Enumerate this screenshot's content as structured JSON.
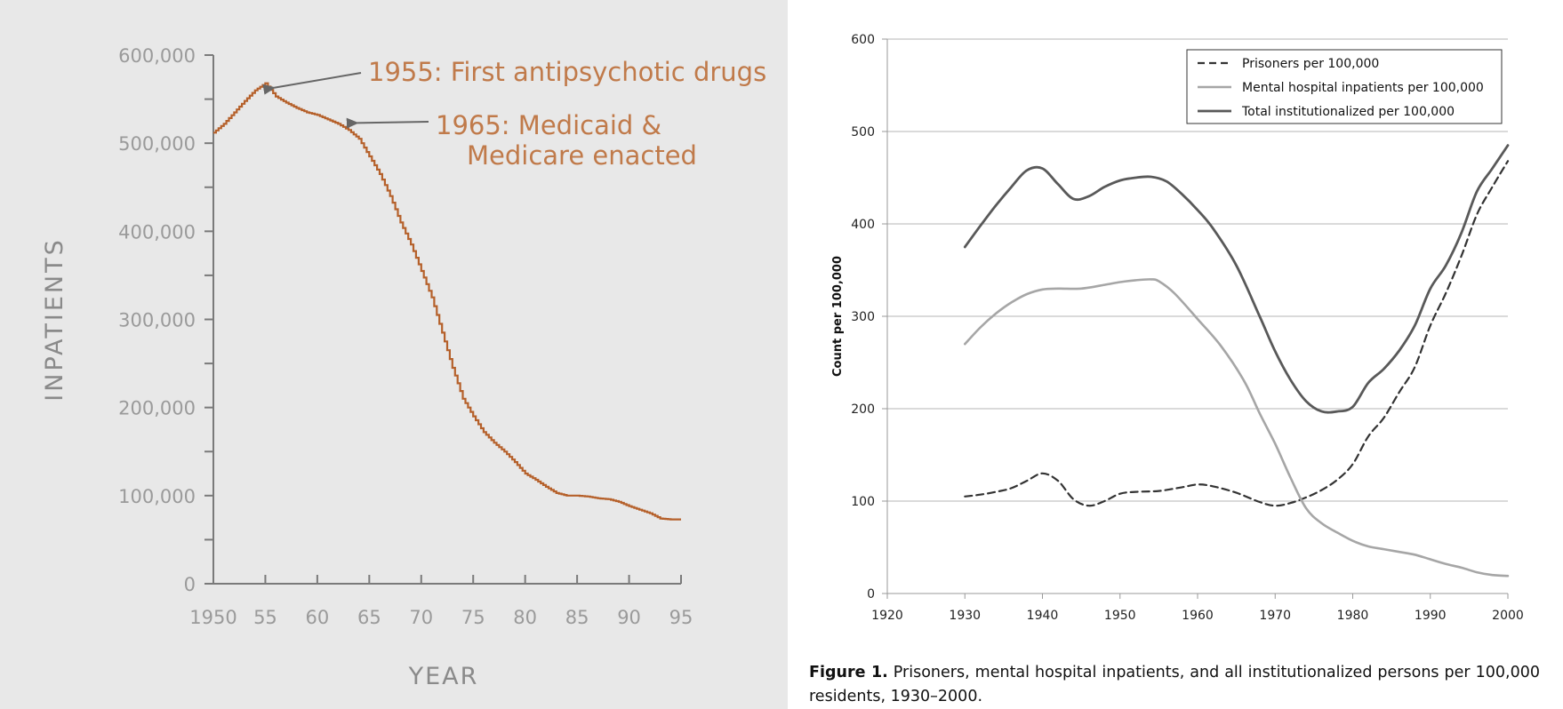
{
  "colors": {
    "left_background": "#e8e8e8",
    "left_axis": "#7a7a7a",
    "left_tick_label": "#9a9a9a",
    "left_line": "#b5602a",
    "left_annotation": "#c07a4a",
    "left_arrow": "#666666",
    "right_axis": "#999999",
    "right_grid": "#b5b5b5",
    "prisoners_line": "#333333",
    "mental_line": "#a6a6a6",
    "total_line": "#595959"
  },
  "chart_data": [
    {
      "type": "line",
      "ylabel": "INPATIENTS",
      "xlabel": "YEAR",
      "xlim": [
        1950,
        1995
      ],
      "ylim": [
        0,
        600000
      ],
      "x_tick_labels": [
        "1950",
        "55",
        "60",
        "65",
        "70",
        "75",
        "80",
        "85",
        "90",
        "95"
      ],
      "x_ticks": [
        1950,
        1955,
        1960,
        1965,
        1970,
        1975,
        1980,
        1985,
        1990,
        1995
      ],
      "y_tick_labels": [
        "0",
        "100,000",
        "200,000",
        "300,000",
        "400,000",
        "500,000",
        "600,000"
      ],
      "y_ticks": [
        0,
        100000,
        200000,
        300000,
        400000,
        500000,
        600000
      ],
      "grid": false,
      "x": [
        1950,
        1951,
        1952,
        1953,
        1954,
        1955,
        1956,
        1957,
        1958,
        1959,
        1960,
        1961,
        1962,
        1963,
        1964,
        1965,
        1966,
        1967,
        1968,
        1969,
        1970,
        1971,
        1972,
        1973,
        1974,
        1975,
        1976,
        1977,
        1978,
        1979,
        1980,
        1981,
        1982,
        1983,
        1984,
        1985,
        1986,
        1987,
        1988,
        1989,
        1990,
        1991,
        1992,
        1993,
        1994,
        1995
      ],
      "y": [
        512000,
        522000,
        535000,
        548000,
        560000,
        568000,
        553000,
        546000,
        540000,
        535000,
        532000,
        527000,
        522000,
        515000,
        505000,
        485000,
        465000,
        440000,
        410000,
        385000,
        355000,
        325000,
        285000,
        245000,
        210000,
        190000,
        172000,
        160000,
        150000,
        138000,
        125000,
        118000,
        110000,
        103000,
        100000,
        100000,
        99000,
        97000,
        96000,
        93000,
        88000,
        84000,
        80000,
        74000,
        73000,
        73000
      ],
      "annotations": [
        {
          "text": "1955: First antipsychotic drugs",
          "x": 1955.5,
          "y": 566000
        },
        {
          "lines": [
            "1965: Medicaid &",
            "Medicare enacted"
          ],
          "x": 1963.5,
          "y": 525000
        }
      ]
    },
    {
      "type": "line",
      "ylabel": "Count per 100,000",
      "xlim": [
        1920,
        2000
      ],
      "ylim": [
        0,
        600
      ],
      "x_ticks": [
        1920,
        1930,
        1940,
        1950,
        1960,
        1970,
        1980,
        1990,
        2000
      ],
      "x_tick_labels": [
        "1920",
        "1930",
        "1940",
        "1950",
        "1960",
        "1970",
        "1980",
        "1990",
        "2000"
      ],
      "y_ticks": [
        0,
        100,
        200,
        300,
        400,
        500,
        600
      ],
      "y_tick_labels": [
        "0",
        "100",
        "200",
        "300",
        "400",
        "500",
        "600"
      ],
      "grid": true,
      "legend_position": "top-right",
      "series": [
        {
          "name": "Prisoners per 100,000",
          "style": "dashed",
          "x": [
            1930,
            1932,
            1934,
            1936,
            1938,
            1940,
            1942,
            1944,
            1946,
            1948,
            1950,
            1952,
            1955,
            1958,
            1960,
            1962,
            1965,
            1968,
            1970,
            1972,
            1974,
            1976,
            1978,
            1980,
            1982,
            1984,
            1986,
            1988,
            1990,
            1992,
            1994,
            1996,
            1998,
            2000
          ],
          "values": [
            105,
            107,
            110,
            114,
            122,
            130,
            122,
            102,
            95,
            100,
            108,
            110,
            111,
            115,
            118,
            116,
            109,
            99,
            95,
            98,
            104,
            112,
            123,
            140,
            170,
            190,
            218,
            245,
            290,
            325,
            365,
            410,
            440,
            468
          ]
        },
        {
          "name": "Mental hospital inpatients per 100,000",
          "style": "solid",
          "x": [
            1930,
            1932,
            1934,
            1936,
            1938,
            1940,
            1942,
            1945,
            1948,
            1950,
            1952,
            1954,
            1955,
            1957,
            1960,
            1963,
            1966,
            1968,
            1970,
            1972,
            1974,
            1976,
            1978,
            1980,
            1982,
            1984,
            1986,
            1988,
            1990,
            1992,
            1994,
            1996,
            1998,
            2000
          ],
          "values": [
            270,
            288,
            303,
            315,
            324,
            329,
            330,
            330,
            334,
            337,
            339,
            340,
            338,
            325,
            297,
            268,
            230,
            195,
            162,
            125,
            92,
            76,
            66,
            57,
            51,
            48,
            45,
            42,
            37,
            32,
            28,
            23,
            20,
            19
          ]
        },
        {
          "name": "Total institutionalized per 100,000",
          "style": "solid",
          "x": [
            1930,
            1932,
            1934,
            1936,
            1938,
            1940,
            1942,
            1944,
            1946,
            1948,
            1950,
            1952,
            1954,
            1956,
            1958,
            1960,
            1962,
            1965,
            1968,
            1970,
            1972,
            1974,
            1976,
            1978,
            1980,
            1982,
            1984,
            1986,
            1988,
            1990,
            1992,
            1994,
            1996,
            1998,
            2000
          ],
          "values": [
            375,
            398,
            420,
            440,
            458,
            460,
            443,
            427,
            430,
            440,
            447,
            450,
            451,
            446,
            432,
            415,
            395,
            355,
            300,
            262,
            231,
            208,
            197,
            197,
            202,
            228,
            243,
            263,
            290,
            330,
            355,
            390,
            435,
            460,
            485
          ]
        }
      ]
    }
  ],
  "figure_caption": {
    "label": "Figure 1.",
    "text": " Prisoners, mental hospital inpatients, and all institutionalized persons per 100,000 residents, 1930–2000."
  }
}
